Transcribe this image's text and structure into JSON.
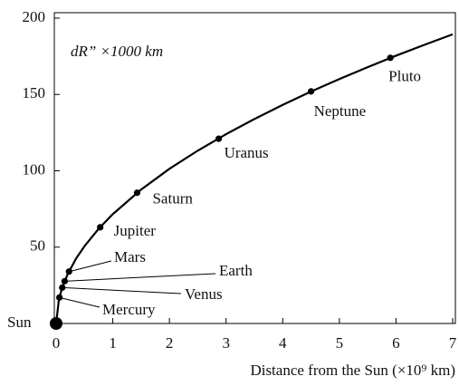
{
  "chart_data": {
    "type": "scatter",
    "annotation": "dR” ×1000 km",
    "x_label": "Distance from the Sun (×10⁹ km)",
    "xlim": [
      0,
      7
    ],
    "ylim": [
      0,
      200
    ],
    "xticks": [
      0,
      1,
      2,
      3,
      4,
      5,
      6,
      7
    ],
    "yticks": [
      50,
      100,
      150,
      200
    ],
    "color": "#000000",
    "points": {
      "labels": [
        "Sun",
        "Mercury",
        "Venus",
        "Earth",
        "Mars",
        "Jupiter",
        "Saturn",
        "Uranus",
        "Neptune",
        "Pluto"
      ],
      "x": [
        0,
        0.058,
        0.108,
        0.15,
        0.228,
        0.778,
        1.43,
        2.87,
        4.5,
        5.9
      ],
      "values": [
        0,
        17,
        23.5,
        27.7,
        34,
        63,
        85.6,
        121,
        152,
        174
      ]
    },
    "curve": {
      "x": [
        0,
        0.05,
        0.1,
        0.2,
        0.35,
        0.5,
        0.75,
        1,
        1.5,
        2,
        2.5,
        3,
        3.5,
        4,
        4.5,
        5,
        5.5,
        6,
        6.5,
        7
      ],
      "values": [
        0,
        16.0,
        22.6,
        32.0,
        42.4,
        50.6,
        62.0,
        71.6,
        87.7,
        101.3,
        113.2,
        124.0,
        133.9,
        143.2,
        151.9,
        160.1,
        167.9,
        175.4,
        182.5,
        189.4
      ]
    }
  }
}
